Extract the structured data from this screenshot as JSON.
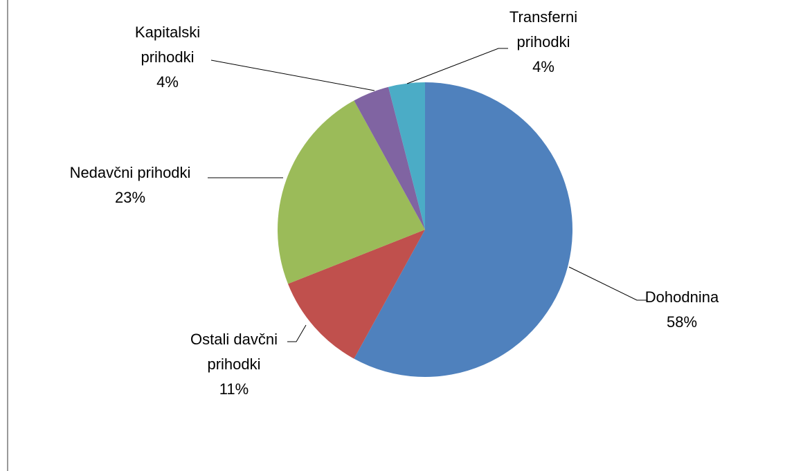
{
  "chart_data": {
    "type": "pie",
    "categories": [
      "Dohodnina",
      "Ostali davčni prihodki",
      "Nedavčni prihodki",
      "Kapitalski prihodki",
      "Transferni prihodki"
    ],
    "values": [
      58,
      11,
      23,
      4,
      4
    ],
    "value_labels": [
      "58%",
      "11%",
      "23%",
      "4%",
      "4%"
    ],
    "colors": [
      "#4f81bd",
      "#c0504d",
      "#9bbb59",
      "#8064a2",
      "#4bacc6"
    ]
  }
}
